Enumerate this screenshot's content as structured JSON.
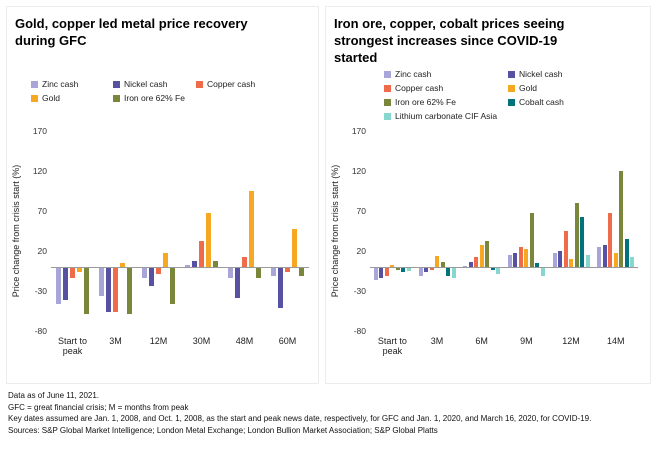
{
  "footer": {
    "lines": [
      "Data as of June 11, 2021.",
      "GFC = great financial crisis; M = months from peak",
      "Key dates assumed are Jan. 1, 2008, and Oct. 1, 2008, as the start and peak news date, respectively, for GFC and Jan. 1, 2020, and March 16, 2020, for COVID-19.",
      "Sources: S&P Global Market Intelligence; London Metal Exchange; London Bullion Market Association; S&P Global Platts"
    ]
  },
  "chart_data": [
    {
      "type": "bar",
      "title": "Gold, copper led metal price recovery during GFC",
      "ylabel": "Price change from crisis start (%)",
      "categories": [
        "Start to peak",
        "3M",
        "12M",
        "30M",
        "48M",
        "60M"
      ],
      "series": [
        {
          "name": "Zinc cash",
          "color": "#a8a5d8",
          "values": [
            -45,
            -35,
            -12,
            3,
            -12,
            -10
          ]
        },
        {
          "name": "Nickel cash",
          "color": "#5751a1",
          "values": [
            -40,
            -55,
            -22,
            7,
            -38,
            -50
          ]
        },
        {
          "name": "Copper cash",
          "color": "#f06b4a",
          "values": [
            -12,
            -55,
            -8,
            33,
            12,
            -5
          ]
        },
        {
          "name": "Gold",
          "color": "#f7a823",
          "values": [
            -5,
            5,
            18,
            67,
            95,
            48
          ]
        },
        {
          "name": "Iron ore 62% Fe",
          "color": "#79863b",
          "values": [
            -57,
            -57,
            -45,
            8,
            -12,
            -10
          ]
        }
      ],
      "yticks": [
        170,
        120,
        70,
        20,
        -30,
        -80
      ],
      "ylim": [
        -80,
        170
      ],
      "grid": false,
      "legend_position": "top"
    },
    {
      "type": "bar",
      "title": "Iron ore, copper, cobalt prices seeing strongest increases since COVID-19 started",
      "ylabel": "Price change from crisis start (%)",
      "categories": [
        "Start to peak",
        "3M",
        "6M",
        "9M",
        "12M",
        "14M"
      ],
      "series": [
        {
          "name": "Zinc cash",
          "color": "#a8a5d8",
          "values": [
            -15,
            -10,
            1,
            15,
            18,
            25
          ]
        },
        {
          "name": "Nickel cash",
          "color": "#5751a1",
          "values": [
            -12,
            -5,
            6,
            18,
            20,
            27
          ]
        },
        {
          "name": "Copper cash",
          "color": "#f06b4a",
          "values": [
            -10,
            -2,
            12,
            25,
            45,
            68
          ]
        },
        {
          "name": "Gold",
          "color": "#f7a823",
          "values": [
            3,
            14,
            28,
            22,
            10,
            18
          ]
        },
        {
          "name": "Iron ore 62% Fe",
          "color": "#79863b",
          "values": [
            -3,
            6,
            33,
            68,
            80,
            120
          ]
        },
        {
          "name": "Cobalt cash",
          "color": "#00737d",
          "values": [
            -5,
            -10,
            -3,
            5,
            62,
            35
          ]
        },
        {
          "name": "Lithium carbonate CIF Asia",
          "color": "#86d7ce",
          "values": [
            -4,
            -12,
            -8,
            -10,
            15,
            12
          ]
        }
      ],
      "yticks": [
        170,
        120,
        70,
        20,
        -30,
        -80
      ],
      "ylim": [
        -80,
        170
      ],
      "grid": false,
      "legend_position": "top"
    }
  ]
}
